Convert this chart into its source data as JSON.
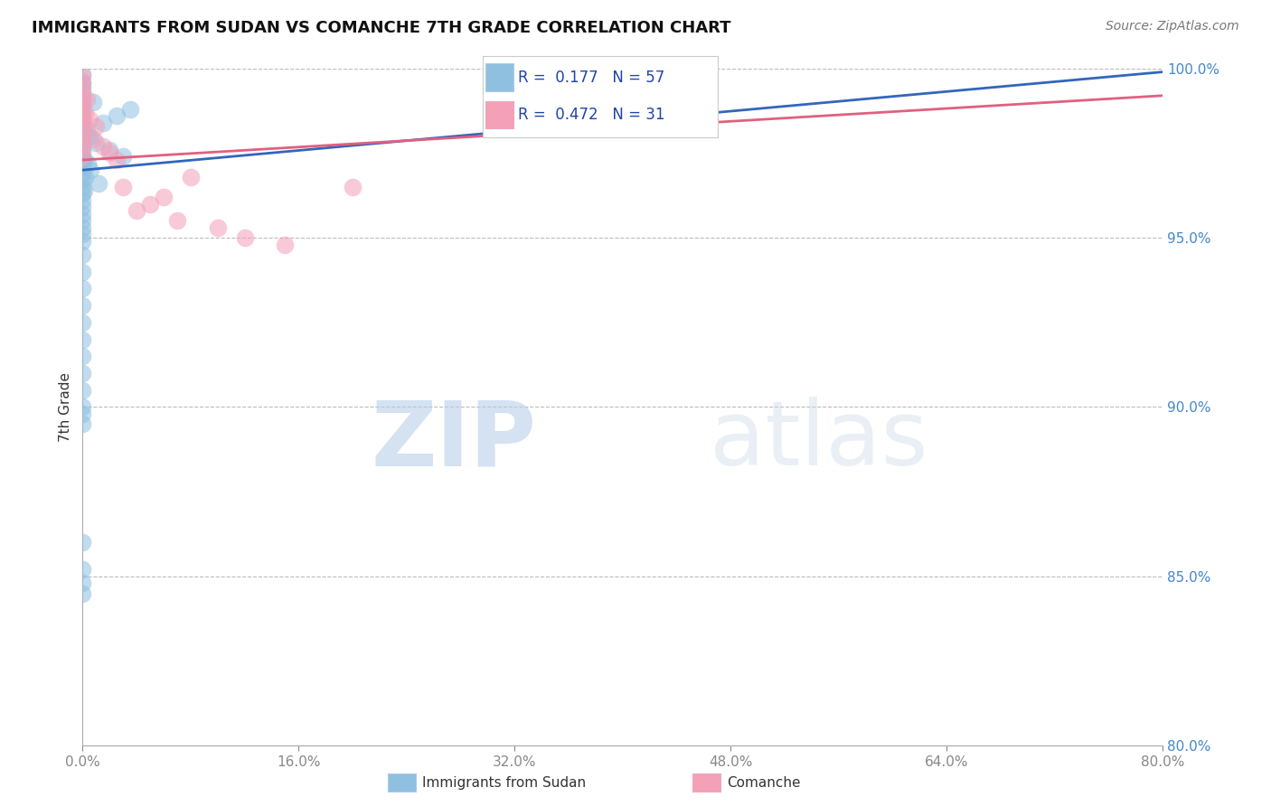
{
  "title": "IMMIGRANTS FROM SUDAN VS COMANCHE 7TH GRADE CORRELATION CHART",
  "source": "Source: ZipAtlas.com",
  "ylabel_label": "7th Grade",
  "xlim": [
    0.0,
    80.0
  ],
  "ylim": [
    80.0,
    100.0
  ],
  "yticks": [
    80.0,
    85.0,
    90.0,
    95.0,
    100.0
  ],
  "xtick_vals": [
    0.0,
    16.0,
    32.0,
    48.0,
    64.0,
    80.0
  ],
  "blue_R": 0.177,
  "blue_N": 57,
  "pink_R": 0.472,
  "pink_N": 31,
  "blue_color": "#8fc0e0",
  "pink_color": "#f4a0b8",
  "blue_line_color": "#3366bb",
  "pink_line_color": "#e06080",
  "legend_label_blue": "Immigrants from Sudan",
  "legend_label_pink": "Comanche",
  "watermark_zip": "ZIP",
  "watermark_atlas": "atlas",
  "blue_line_x": [
    0.0,
    80.0
  ],
  "blue_line_y": [
    97.0,
    99.9
  ],
  "pink_line_x": [
    0.0,
    80.0
  ],
  "pink_line_y": [
    97.3,
    99.2
  ],
  "blue_scatter_x": [
    0.0,
    0.0,
    0.0,
    0.0,
    0.0,
    0.0,
    0.0,
    0.0,
    0.0,
    0.0,
    0.0,
    0.0,
    0.0,
    0.0,
    0.0,
    0.0,
    0.0,
    0.0,
    0.0,
    0.0,
    0.0,
    0.0,
    0.0,
    0.0,
    0.0,
    0.0,
    0.0,
    0.0,
    0.0,
    0.0,
    0.0,
    0.0,
    0.3,
    0.4,
    0.5,
    0.8,
    1.0,
    1.5,
    2.0,
    2.5,
    3.0,
    3.5,
    0.2,
    0.6,
    1.2,
    0.0,
    0.0,
    0.0,
    0.0,
    0.0,
    0.0,
    0.0,
    0.0,
    0.0,
    0.0,
    0.1,
    0.1
  ],
  "blue_scatter_y": [
    99.8,
    99.6,
    99.5,
    99.3,
    99.1,
    98.9,
    98.7,
    98.5,
    98.3,
    98.1,
    97.9,
    97.7,
    97.5,
    97.3,
    97.1,
    96.9,
    96.7,
    96.5,
    96.3,
    96.1,
    95.9,
    95.7,
    95.5,
    95.3,
    95.1,
    94.9,
    94.5,
    94.0,
    93.5,
    93.0,
    92.5,
    92.0,
    98.2,
    97.2,
    98.0,
    99.0,
    97.8,
    98.4,
    97.6,
    98.6,
    97.4,
    98.8,
    96.8,
    97.0,
    96.6,
    91.5,
    91.0,
    90.5,
    90.0,
    89.8,
    89.5,
    86.0,
    85.2,
    84.8,
    84.5,
    97.3,
    96.4
  ],
  "pink_scatter_x": [
    0.0,
    0.0,
    0.0,
    0.0,
    0.0,
    0.0,
    0.0,
    0.0,
    0.0,
    0.0,
    0.0,
    0.0,
    0.0,
    0.3,
    0.5,
    0.8,
    1.0,
    1.5,
    2.0,
    2.5,
    3.0,
    4.0,
    5.0,
    6.0,
    7.0,
    8.0,
    10.0,
    12.0,
    15.0,
    20.0,
    0.2
  ],
  "pink_scatter_y": [
    99.8,
    99.6,
    99.4,
    99.2,
    99.0,
    98.8,
    98.6,
    98.4,
    98.2,
    98.0,
    97.8,
    97.6,
    97.4,
    99.1,
    98.5,
    97.9,
    98.3,
    97.7,
    97.5,
    97.3,
    96.5,
    95.8,
    96.0,
    96.2,
    95.5,
    96.8,
    95.3,
    95.0,
    94.8,
    96.5,
    98.7
  ]
}
